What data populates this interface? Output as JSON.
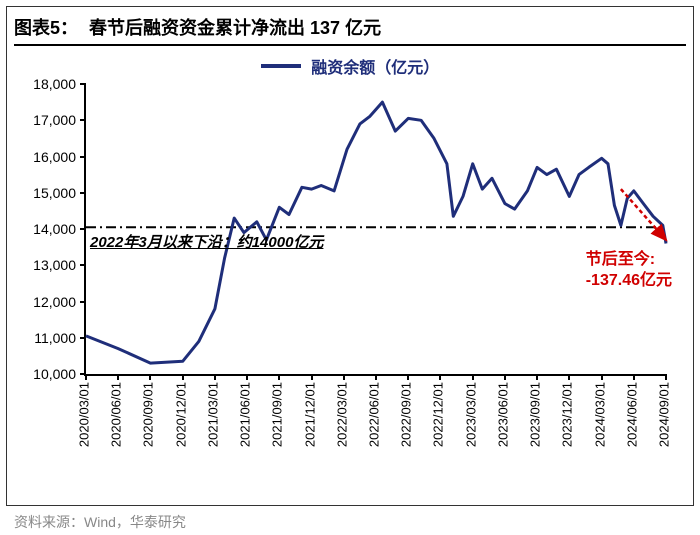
{
  "header": {
    "prefix": "图表5：",
    "title": "春节后融资资金累计净流出 137 亿元"
  },
  "legend": {
    "label": "融资余额（亿元）",
    "color": "#1f2e7a",
    "line_width": 3
  },
  "chart": {
    "type": "line",
    "line_color": "#1f2e7a",
    "line_width": 3,
    "background_color": "#ffffff",
    "axis_color": "#000000",
    "ylim": [
      10000,
      18000
    ],
    "ytick_step": 1000,
    "yticks": [
      10000,
      11000,
      12000,
      13000,
      14000,
      15000,
      16000,
      17000,
      18000
    ],
    "ylabel_fmt": [
      "10,000",
      "11,000",
      "12,000",
      "13,000",
      "14,000",
      "15,000",
      "16,000",
      "17,000",
      "18,000"
    ],
    "xticks": [
      "2020/03/01",
      "2020/06/01",
      "2020/09/01",
      "2020/12/01",
      "2021/03/01",
      "2021/06/01",
      "2021/09/01",
      "2021/12/01",
      "2022/03/01",
      "2022/06/01",
      "2022/09/01",
      "2022/12/01",
      "2023/03/01",
      "2023/06/01",
      "2023/09/01",
      "2023/12/01",
      "2024/03/01",
      "2024/06/01",
      "2024/09/01"
    ],
    "series": [
      {
        "t": 0,
        "v": 11050
      },
      {
        "t": 1,
        "v": 10700
      },
      {
        "t": 2,
        "v": 10300
      },
      {
        "t": 3,
        "v": 10350
      },
      {
        "t": 3.5,
        "v": 10900
      },
      {
        "t": 4,
        "v": 11800
      },
      {
        "t": 4.3,
        "v": 13200
      },
      {
        "t": 4.6,
        "v": 14300
      },
      {
        "t": 4.9,
        "v": 13900
      },
      {
        "t": 5.3,
        "v": 14200
      },
      {
        "t": 5.6,
        "v": 13700
      },
      {
        "t": 6,
        "v": 14600
      },
      {
        "t": 6.3,
        "v": 14400
      },
      {
        "t": 6.7,
        "v": 15150
      },
      {
        "t": 7,
        "v": 15100
      },
      {
        "t": 7.3,
        "v": 15200
      },
      {
        "t": 7.7,
        "v": 15050
      },
      {
        "t": 8.1,
        "v": 16200
      },
      {
        "t": 8.5,
        "v": 16900
      },
      {
        "t": 8.8,
        "v": 17100
      },
      {
        "t": 9.2,
        "v": 17500
      },
      {
        "t": 9.6,
        "v": 16700
      },
      {
        "t": 10.0,
        "v": 17050
      },
      {
        "t": 10.4,
        "v": 17000
      },
      {
        "t": 10.8,
        "v": 16500
      },
      {
        "t": 11.2,
        "v": 15800
      },
      {
        "t": 11.4,
        "v": 14350
      },
      {
        "t": 11.7,
        "v": 14900
      },
      {
        "t": 12.0,
        "v": 15800
      },
      {
        "t": 12.3,
        "v": 15100
      },
      {
        "t": 12.6,
        "v": 15400
      },
      {
        "t": 13.0,
        "v": 14700
      },
      {
        "t": 13.3,
        "v": 14550
      },
      {
        "t": 13.7,
        "v": 15050
      },
      {
        "t": 14.0,
        "v": 15700
      },
      {
        "t": 14.3,
        "v": 15500
      },
      {
        "t": 14.6,
        "v": 15650
      },
      {
        "t": 15.0,
        "v": 14900
      },
      {
        "t": 15.3,
        "v": 15500
      },
      {
        "t": 15.6,
        "v": 15700
      },
      {
        "t": 16.0,
        "v": 15950
      },
      {
        "t": 16.2,
        "v": 15800
      },
      {
        "t": 16.4,
        "v": 14650
      },
      {
        "t": 16.6,
        "v": 14100
      },
      {
        "t": 16.8,
        "v": 14850
      },
      {
        "t": 17.0,
        "v": 15050
      },
      {
        "t": 17.3,
        "v": 14700
      },
      {
        "t": 17.6,
        "v": 14350
      },
      {
        "t": 17.9,
        "v": 14100
      },
      {
        "t": 18.0,
        "v": 13600
      }
    ],
    "ref_line_value": 14050,
    "ref_line_style": "dash-dot",
    "ref_line_color": "#000000",
    "ref_line_text": "2022年3月以来下沿：约14000亿元",
    "annotation": {
      "line1": "节后至今:",
      "line2": "-137.46亿元",
      "color": "#d00000",
      "fontsize": 16
    },
    "arrow": {
      "color": "#d00000",
      "dash": "3,3",
      "from_t": 16.6,
      "from_v": 15100,
      "to_t": 18.0,
      "to_v": 13700
    }
  },
  "source": "资料来源：Wind，华泰研究"
}
